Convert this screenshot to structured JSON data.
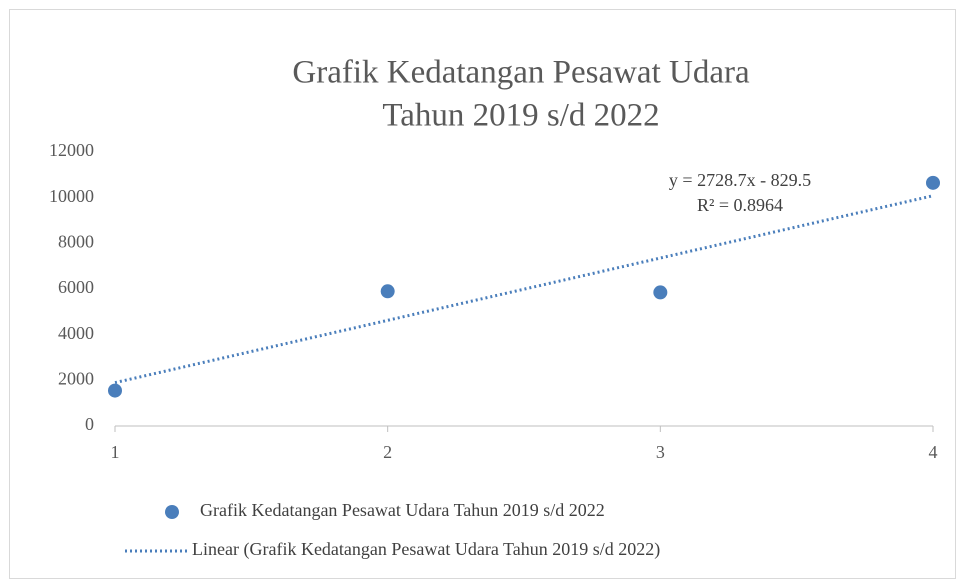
{
  "chart_data": {
    "type": "scatter",
    "title": [
      "Grafik Kedatangan Pesawat Udara",
      "Tahun 2019 s/d 2022"
    ],
    "series": [
      {
        "name": "Grafik Kedatangan Pesawat Udara Tahun 2019 s/d 2022",
        "color": "#4a7ebb",
        "x": [
          1,
          2,
          3,
          4
        ],
        "values": [
          1550,
          5900,
          5850,
          10650
        ]
      },
      {
        "name": "Linear (Grafik Kedatangan Pesawat Udara Tahun 2019 s/d 2022)",
        "color": "#4a7ebb",
        "kind": "trendline",
        "x": [
          1,
          4
        ],
        "values": [
          1899.2,
          10085.3
        ]
      }
    ],
    "annotations": [
      "y = 2728.7x - 829.5",
      "R² = 0.8964"
    ],
    "xlim": [
      1,
      4
    ],
    "xticks": [
      1,
      2,
      3,
      4
    ],
    "ylim": [
      0,
      12000
    ],
    "yticks": [
      0,
      2000,
      4000,
      6000,
      8000,
      10000,
      12000
    ],
    "grid": false,
    "legend": "bottom"
  }
}
